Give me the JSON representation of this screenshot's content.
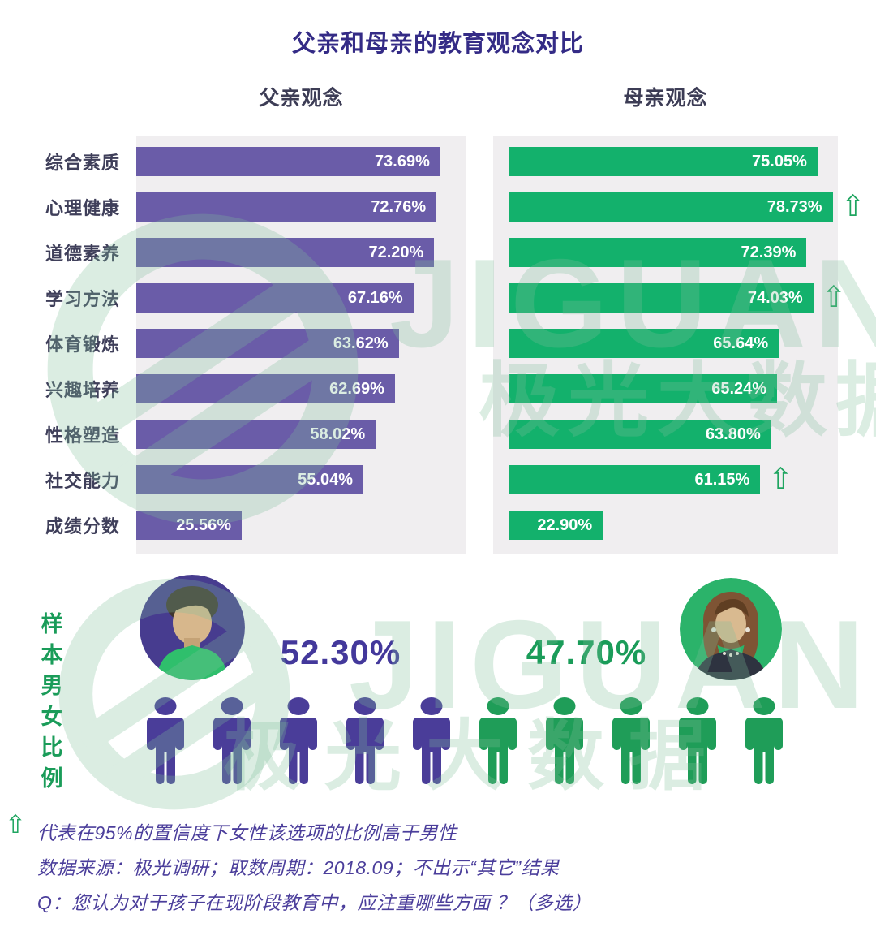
{
  "title": "父亲和母亲的教育观念对比",
  "father": {
    "subtitle": "父亲观念"
  },
  "mother": {
    "subtitle": "母亲观念"
  },
  "chart_data": {
    "type": "bar",
    "orientation": "horizontal",
    "title": "父亲和母亲的教育观念对比",
    "categories": [
      "综合素质",
      "心理健康",
      "道德素养",
      "学习方法",
      "体育锻炼",
      "兴趣培养",
      "性格塑造",
      "社交能力",
      "成绩分数"
    ],
    "series": [
      {
        "name": "父亲观念",
        "color_key": "father_bar",
        "values": [
          73.69,
          72.76,
          72.2,
          67.16,
          63.62,
          62.69,
          58.02,
          55.04,
          25.56
        ]
      },
      {
        "name": "母亲观念",
        "color_key": "mother_bar",
        "values": [
          75.05,
          78.73,
          72.39,
          74.03,
          65.64,
          65.24,
          63.8,
          61.15,
          22.9
        ],
        "significant_rows": [
          1,
          3,
          7
        ]
      }
    ],
    "value_suffix": "%",
    "xlim": [
      0,
      80
    ],
    "grid": false,
    "legend_position": "top"
  },
  "sample": {
    "label_vertical": "样本男女比例",
    "male_percent": "52.30%",
    "female_percent": "47.70%",
    "male_icon_count": 5,
    "female_icon_count": 5
  },
  "footnotes": {
    "line1": "代表在95%的置信度下女性该选项的比例高于男性",
    "line2": "数据来源：极光调研；取数周期：2018.09；不出示“其它”结果",
    "line3": "Q：您认为对于孩子在现阶段教育中，应注重哪些方面 ？（多选）"
  },
  "watermark": {
    "brand": "JIGUANG",
    "brand_cn": "极光大数据"
  },
  "icons": {
    "significance_arrow": "⇧"
  },
  "colors": {
    "title": "#342B86",
    "subtitle": "#3C3C55",
    "label_dark": "#3F3F5A",
    "panel_bg": "#F0EEF0",
    "father_bar": "#6A5CA8",
    "mother_bar": "#13B16C",
    "male_purple": "#43389B",
    "female_green": "#1A9C59",
    "person_purple": "#4A3D99",
    "person_green": "#1F9D58",
    "arrow_green": "#1FA560",
    "footnote": "#4B3E9B",
    "watermark": "#7FBF9B",
    "value_text": "#FFFFFF"
  }
}
